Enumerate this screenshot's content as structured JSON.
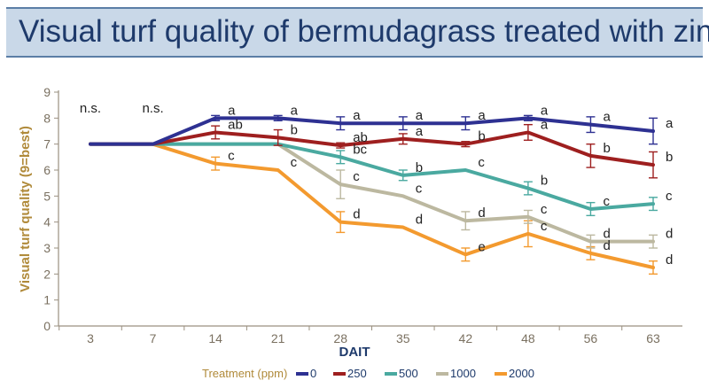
{
  "chart_data": {
    "type": "line",
    "title": "Visual turf quality of bermudagrass treated with zinc",
    "xlabel": "DAIT",
    "ylabel": "Visual turf quality (9=best)",
    "ylim": [
      0,
      9
    ],
    "yticks": [
      0,
      1,
      2,
      3,
      4,
      5,
      6,
      7,
      8,
      9
    ],
    "categories": [
      "3",
      "7",
      "14",
      "21",
      "28",
      "35",
      "42",
      "48",
      "56",
      "63"
    ],
    "legend_title": "Treatment (ppm)",
    "legend_position": "bottom",
    "ns_labels": [
      {
        "x_index": 0,
        "text": "n.s."
      },
      {
        "x_index": 1,
        "text": "n.s."
      }
    ],
    "series": [
      {
        "name": "0",
        "color": "#2e3192",
        "values": [
          7.0,
          7.0,
          8.0,
          8.0,
          7.8,
          7.8,
          7.8,
          8.0,
          7.75,
          7.5
        ],
        "errors": [
          0,
          0,
          0.1,
          0.1,
          0.25,
          0.25,
          0.25,
          0.1,
          0.3,
          0.5
        ],
        "letters": [
          "",
          "",
          "a",
          "a",
          "a",
          "a",
          "a",
          "a",
          "a",
          "a"
        ]
      },
      {
        "name": "250",
        "color": "#9e1f1f",
        "values": [
          7.0,
          7.0,
          7.45,
          7.25,
          6.95,
          7.2,
          7.0,
          7.45,
          6.55,
          6.2
        ],
        "errors": [
          0,
          0,
          0.25,
          0.3,
          0.1,
          0.2,
          0.1,
          0.3,
          0.45,
          0.5
        ],
        "letters": [
          "",
          "",
          "ab",
          "b",
          "ab",
          "a",
          "b",
          "a",
          "b",
          "b"
        ]
      },
      {
        "name": "500",
        "color": "#4aa9a0",
        "values": [
          7.0,
          7.0,
          7.0,
          7.0,
          6.5,
          5.8,
          6.0,
          5.3,
          4.5,
          4.7
        ],
        "errors": [
          0,
          0,
          0,
          0,
          0.25,
          0.2,
          0,
          0.25,
          0.25,
          0.25
        ],
        "letters": [
          "",
          "",
          "",
          "",
          "bc",
          "b",
          "c",
          "b",
          "c",
          "c"
        ]
      },
      {
        "name": "1000",
        "color": "#bcb8a0",
        "values": [
          7.0,
          7.0,
          7.0,
          7.0,
          5.45,
          5.0,
          4.05,
          4.2,
          3.25,
          3.25
        ],
        "errors": [
          0,
          0,
          0,
          0,
          0.55,
          0,
          0.35,
          0.25,
          0.25,
          0.25
        ],
        "letters": [
          "",
          "",
          "",
          "",
          "c",
          "c",
          "d",
          "c",
          "d",
          "d"
        ]
      },
      {
        "name": "2000",
        "color": "#f39a2f",
        "values": [
          7.0,
          7.0,
          6.25,
          6.0,
          4.0,
          3.8,
          2.75,
          3.55,
          2.8,
          2.25
        ],
        "errors": [
          0,
          0,
          0.25,
          0,
          0.4,
          0,
          0.25,
          0.5,
          0.25,
          0.25
        ],
        "letters": [
          "",
          "",
          "c",
          "c",
          "d",
          "d",
          "e",
          "c",
          "d",
          "d"
        ]
      }
    ]
  }
}
